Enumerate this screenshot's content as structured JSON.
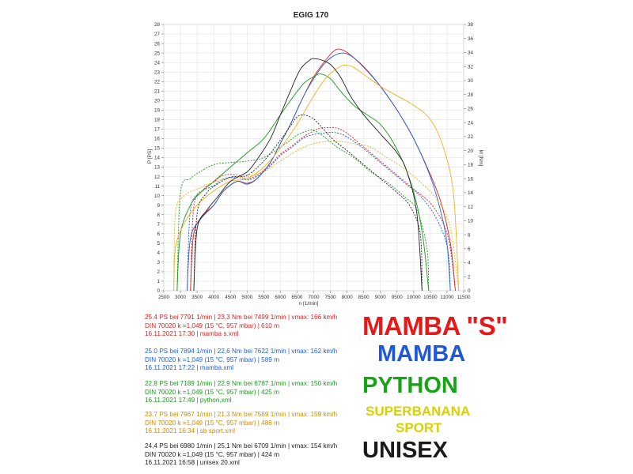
{
  "chart_data": {
    "type": "line",
    "title": "EGIG 170",
    "xlabel": "n [1/min]",
    "ylabel_left": "P [PS]",
    "ylabel_right": "M [Nm]",
    "xlim": [
      2500,
      11500
    ],
    "ylim_left": [
      0,
      28
    ],
    "ylim_right": [
      0,
      38
    ],
    "x_ticks": [
      "2500",
      "3000",
      "3500",
      "4000",
      "4500",
      "5000",
      "5500",
      "6000",
      "6500",
      "7000",
      "7500",
      "8000",
      "8500",
      "9000",
      "9500",
      "10000",
      "10500",
      "11000",
      "11500"
    ],
    "y_left_ticks": [
      "0",
      "1",
      "2",
      "3",
      "4",
      "5",
      "6",
      "7",
      "8",
      "9",
      "10",
      "11",
      "12",
      "13",
      "14",
      "15",
      "16",
      "17",
      "18",
      "19",
      "20",
      "21",
      "22",
      "23",
      "24",
      "25",
      "26",
      "27",
      "28"
    ],
    "y_right_ticks": [
      "0",
      "2",
      "4",
      "6",
      "8",
      "10",
      "12",
      "14",
      "16",
      "18",
      "20",
      "22",
      "24",
      "26",
      "28",
      "30",
      "32",
      "34",
      "36",
      "38"
    ],
    "grid": true,
    "series": [
      {
        "name": "mamba s.xml",
        "color": "#e02020",
        "power": {
          "x": [
            3300,
            3400,
            3700,
            4000,
            4300,
            4700,
            5000,
            5300,
            5700,
            6000,
            6300,
            6700,
            7000,
            7300,
            7600,
            7800,
            8100,
            8500,
            9000,
            9500,
            10000,
            10400,
            10800,
            11100,
            11250
          ],
          "y": [
            0,
            6,
            8,
            9,
            10.5,
            11.5,
            11.3,
            11.8,
            13.5,
            15.5,
            17.5,
            20.5,
            22.5,
            24,
            25.2,
            25.4,
            24.8,
            23.5,
            21.5,
            19,
            16,
            13,
            9.5,
            5,
            0
          ]
        },
        "torque": {
          "x": [
            3300,
            3400,
            3700,
            4000,
            4300,
            4700,
            5000,
            5300,
            5700,
            6000,
            6300,
            6700,
            7000,
            7200,
            7500,
            7700,
            8000,
            8500,
            9000,
            9500,
            10000,
            10500,
            10900,
            11100,
            11250
          ],
          "y": [
            0,
            12,
            14.5,
            15.5,
            16.5,
            16.5,
            16,
            16.5,
            18,
            19.5,
            20.5,
            22,
            22.8,
            23.2,
            23.3,
            23.2,
            22.5,
            20.5,
            18.5,
            16.5,
            14.5,
            12.5,
            9.5,
            6,
            0
          ]
        }
      },
      {
        "name": "mamba.xml",
        "color": "#2060d8",
        "power": {
          "x": [
            3200,
            3300,
            3600,
            4000,
            4300,
            4700,
            5000,
            5300,
            5700,
            6000,
            6300,
            6700,
            7000,
            7300,
            7600,
            7900,
            8200,
            8600,
            9000,
            9500,
            10000,
            10500,
            10800,
            11000,
            11100
          ],
          "y": [
            0,
            5.5,
            7.5,
            9,
            10.5,
            11.5,
            11.2,
            11.8,
            13.5,
            15.5,
            17.5,
            20.5,
            22.3,
            23.8,
            24.7,
            25.0,
            24.5,
            23.2,
            21.5,
            19,
            16,
            12,
            8.5,
            5,
            0
          ]
        },
        "torque": {
          "x": [
            3200,
            3300,
            3600,
            4000,
            4300,
            4700,
            5000,
            5300,
            5700,
            6000,
            6300,
            6700,
            7000,
            7300,
            7600,
            7900,
            8300,
            8700,
            9200,
            9700,
            10200,
            10600,
            10900,
            11050,
            11100
          ],
          "y": [
            0,
            11.5,
            14,
            15,
            16,
            16.2,
            15.8,
            16.3,
            17.8,
            19.3,
            20.3,
            21.8,
            22.3,
            22.5,
            22.6,
            22.2,
            21,
            19.5,
            17.5,
            15.5,
            13.5,
            11,
            8,
            5,
            0
          ]
        }
      },
      {
        "name": "python.xml",
        "color": "#1a9a1a",
        "power": {
          "x": [
            2900,
            3000,
            3300,
            3600,
            4000,
            4500,
            5000,
            5500,
            6000,
            6300,
            6700,
            7000,
            7200,
            7500,
            7800,
            8200,
            8600,
            9000,
            9400,
            9800,
            10100,
            10300,
            10450
          ],
          "y": [
            0,
            6,
            9,
            10.3,
            11.5,
            13,
            14.5,
            16,
            18.5,
            20,
            21.8,
            22.5,
            22.8,
            22.3,
            21,
            19.5,
            18.5,
            17.5,
            15.5,
            12.5,
            9,
            5,
            0
          ]
        },
        "torque": {
          "x": [
            2900,
            3000,
            3300,
            3600,
            4000,
            4500,
            5000,
            5500,
            6000,
            6300,
            6500,
            6800,
            7000,
            7300,
            7700,
            8200,
            8700,
            9200,
            9700,
            10100,
            10400,
            10450
          ],
          "y": [
            0,
            14,
            16,
            17,
            18,
            18.3,
            18.5,
            19,
            20.5,
            21.5,
            22.2,
            22.8,
            22.9,
            22,
            20.5,
            19,
            17,
            15.5,
            13.5,
            11.5,
            6,
            0
          ]
        }
      },
      {
        "name": "sb sport.xml",
        "color": "#f0b020",
        "power": {
          "x": [
            2800,
            2850,
            3100,
            3500,
            4000,
            4500,
            5000,
            5500,
            6000,
            6500,
            7000,
            7400,
            7800,
            8000,
            8200,
            8600,
            9000,
            9500,
            10000,
            10500,
            10900,
            11200,
            11350
          ],
          "y": [
            0,
            4.5,
            7,
            9,
            10.5,
            11.5,
            11.8,
            13,
            15,
            17.5,
            20.5,
            22.5,
            23.6,
            23.7,
            23.5,
            22.5,
            21.5,
            20.5,
            19.5,
            18,
            15,
            10,
            0
          ]
        },
        "torque": {
          "x": [
            2800,
            2850,
            3100,
            3500,
            4000,
            4500,
            5000,
            5500,
            6000,
            6500,
            7000,
            7500,
            7800,
            8200,
            8700,
            9200,
            9700,
            10200,
            10700,
            11100,
            11350
          ],
          "y": [
            0,
            11,
            13.5,
            14.5,
            15.5,
            16,
            16.3,
            17,
            18.5,
            20,
            21,
            21.3,
            21.3,
            21,
            20.5,
            19,
            17.5,
            15.5,
            13,
            9,
            0
          ]
        }
      },
      {
        "name": "unisex 20.xml",
        "color": "#222222",
        "power": {
          "x": [
            3400,
            3500,
            3800,
            4100,
            4500,
            5000,
            5300,
            5700,
            6000,
            6300,
            6600,
            6900,
            7000,
            7200,
            7500,
            7800,
            8100,
            8500,
            9000,
            9500,
            9800,
            10100,
            10250
          ],
          "y": [
            0,
            6.5,
            8.5,
            9.8,
            11.5,
            12.5,
            13.8,
            16,
            18.5,
            21,
            23.3,
            24.3,
            24.4,
            24.3,
            23.8,
            22.5,
            20.5,
            18.5,
            16.5,
            14.5,
            12.5,
            8,
            0
          ]
        },
        "torque": {
          "x": [
            3400,
            3500,
            3800,
            4100,
            4500,
            5000,
            5500,
            6000,
            6300,
            6500,
            6700,
            7000,
            7300,
            7600,
            8000,
            8500,
            9000,
            9500,
            9900,
            10200,
            10250
          ],
          "y": [
            0,
            11,
            14,
            15.2,
            16.2,
            16.5,
            18.5,
            21.5,
            23.5,
            24.8,
            25.1,
            24.5,
            23,
            21.5,
            20,
            18,
            16,
            14,
            12,
            8,
            0
          ]
        }
      }
    ]
  },
  "legend": [
    {
      "color": "#e02020",
      "line1": "25.4 PS bei 7791 1/min | 23,3 Nm bei 7499 1/min | vmax: 166 km/h",
      "line2": "DIN 70020 k =1,049 (15 °C, 957 mbar) | 610 m",
      "line3": "16.11.2021 17:30 | mamba s.xml"
    },
    {
      "color": "#2060d8",
      "line1": "25.0 PS bei 7894 1/min | 22,6 Nm bei 7622 1/min | vmax: 162 km/h",
      "line2": "DIN 70020 k =1,049 (15 °C, 957 mbar) | 589 m",
      "line3": "16.11.2021 17:22 | mamba.xml"
    },
    {
      "color": "#1a9a1a",
      "line1": "22,8 PS bei 7189 1/min | 22,9 Nm bei 6787 1/min | vmax: 150 km/h",
      "line2": "DIN 70020 k =1,049 (15 °C, 957 mbar) | 425 m",
      "line3": "16.11.2021 17:49 | python.xml"
    },
    {
      "color": "#d08a00",
      "line1": "23.7 PS bei 7967 1/min | 21,3 Nm bei 7569 1/min | vmax: 159 km/h",
      "line2": "DIN 70020 k =1,049 (15 °C, 957 mbar) | 486 m",
      "line3": "16.11.2021 16:34 | sb sport.xml"
    },
    {
      "color": "#222222",
      "line1": "24,4 PS bei 6980 1/min | 25,1 Nm bei 6709 1/min | vmax: 154 km/h",
      "line2": "DIN 70020 k =1,049 (15 °C, 957 mbar) | 424 m",
      "line3": "16.11.2021 16:58 | unisex 20.xml"
    }
  ],
  "labels": {
    "mamba_s": "MAMBA \"S\"",
    "mamba": "MAMBA",
    "python": "PYTHON",
    "superbanana_1": "SUPERBANANA",
    "superbanana_2": "SPORT",
    "unisex": "UNISEX"
  },
  "colors": {
    "mamba_s": "#e81818",
    "mamba": "#1e58d8",
    "python": "#16a316",
    "superbanana": "#d8d000",
    "unisex": "#1a1a1a"
  }
}
